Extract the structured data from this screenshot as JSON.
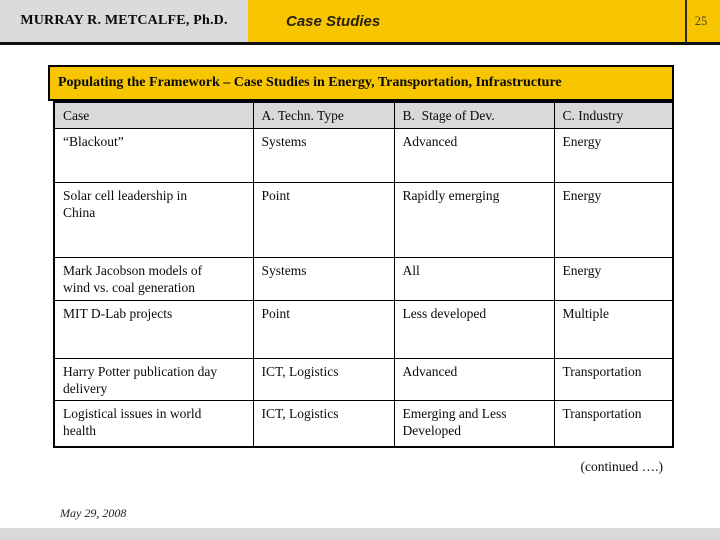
{
  "header": {
    "author": "MURRAY R. METCALFE, Ph.D.",
    "section": "Case Studies",
    "page_number": "25"
  },
  "title_bar": {
    "text": "Populating the Framework – Case Studies in Energy, Transportation, Infrastructure"
  },
  "table": {
    "columns": [
      "Case",
      "A. Techn. Type",
      "B.  Stage of Dev.",
      "C. Industry"
    ],
    "rows": [
      [
        "“Blackout”",
        "Systems",
        "Advanced",
        "Energy"
      ],
      [
        "Solar cell leadership in\nChina",
        "Point",
        "Rapidly emerging",
        "Energy"
      ],
      [
        "Mark Jacobson models of\nwind vs. coal generation",
        "Systems",
        "All",
        "Energy"
      ],
      [
        "MIT D-Lab projects",
        "Point",
        "Less developed",
        "Multiple"
      ],
      [
        "Harry Potter publication day\ndelivery",
        "ICT, Logistics",
        "Advanced",
        "Transportation"
      ],
      [
        "Logistical issues in world\nhealth",
        "ICT, Logistics",
        "Emerging and Less\nDeveloped",
        "Transportation"
      ]
    ]
  },
  "footer": {
    "continued": "(continued ….)",
    "date": "May 29, 2008"
  },
  "colors": {
    "accent_yellow": "#f7c600",
    "band_gray": "#dbdbdb",
    "table_header_gray": "#d9d9d9",
    "border_black": "#000000"
  }
}
